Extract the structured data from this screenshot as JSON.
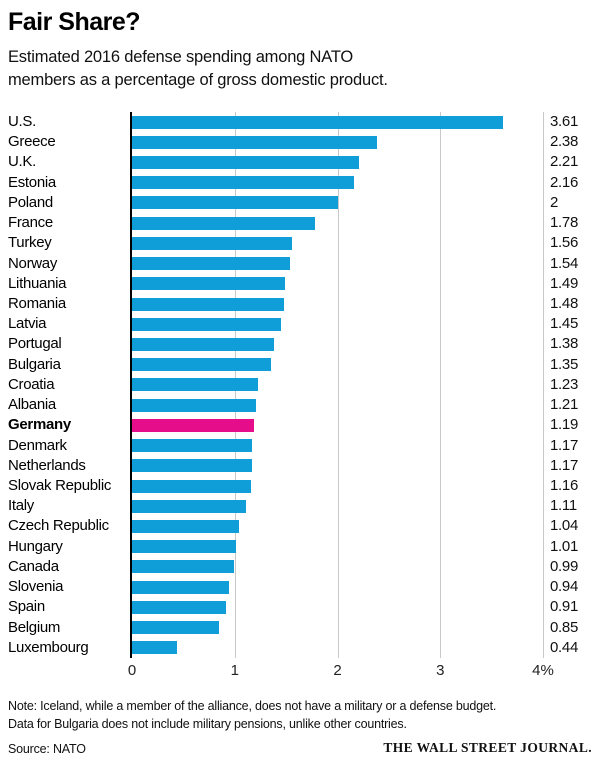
{
  "header": {
    "title": "Fair Share?",
    "subtitle_line1": "Estimated 2016 defense spending among NATO",
    "subtitle_line2": "members as a percentage of gross domestic product."
  },
  "chart_data": {
    "type": "bar",
    "orientation": "horizontal",
    "title": "Fair Share?",
    "subtitle": "Estimated 2016 defense spending among NATO members as a percentage of gross domestic product.",
    "categories": [
      "U.S.",
      "Greece",
      "U.K.",
      "Estonia",
      "Poland",
      "France",
      "Turkey",
      "Norway",
      "Lithuania",
      "Romania",
      "Latvia",
      "Portugal",
      "Bulgaria",
      "Croatia",
      "Albania",
      "Germany",
      "Denmark",
      "Netherlands",
      "Slovak Republic",
      "Italy",
      "Czech Republic",
      "Hungary",
      "Canada",
      "Slovenia",
      "Spain",
      "Belgium",
      "Luxembourg"
    ],
    "values": [
      3.61,
      2.38,
      2.21,
      2.16,
      2,
      1.78,
      1.56,
      1.54,
      1.49,
      1.48,
      1.45,
      1.38,
      1.35,
      1.23,
      1.21,
      1.19,
      1.17,
      1.17,
      1.16,
      1.11,
      1.04,
      1.01,
      0.99,
      0.94,
      0.91,
      0.85,
      0.44
    ],
    "value_labels": [
      "3.61",
      "2.38",
      "2.21",
      "2.16",
      "2",
      "1.78",
      "1.56",
      "1.54",
      "1.49",
      "1.48",
      "1.45",
      "1.38",
      "1.35",
      "1.23",
      "1.21",
      "1.19",
      "1.17",
      "1.17",
      "1.16",
      "1.11",
      "1.04",
      "1.01",
      "0.99",
      "0.94",
      "0.91",
      "0.85",
      "0.44"
    ],
    "highlight_category": "Germany",
    "highlight_index": 15,
    "bar_color": "#0f9ed8",
    "highlight_color": "#e60d8a",
    "gridline_color": "#c9c9c9",
    "xlabel": "",
    "ylabel": "",
    "xlim": [
      0,
      4
    ],
    "x_ticks": [
      0,
      1,
      2,
      3,
      4
    ],
    "x_tick_labels": [
      "0",
      "1",
      "2",
      "3",
      "4%"
    ],
    "grid": true,
    "legend": "none"
  },
  "footer": {
    "note_line1": "Note: Iceland, while a member of the alliance, does not have a military or a defense budget.",
    "note_line2": "Data for Bulgaria does not include military pensions, unlike other countries.",
    "source": "Source: NATO",
    "credit": "THE WALL STREET JOURNAL."
  }
}
